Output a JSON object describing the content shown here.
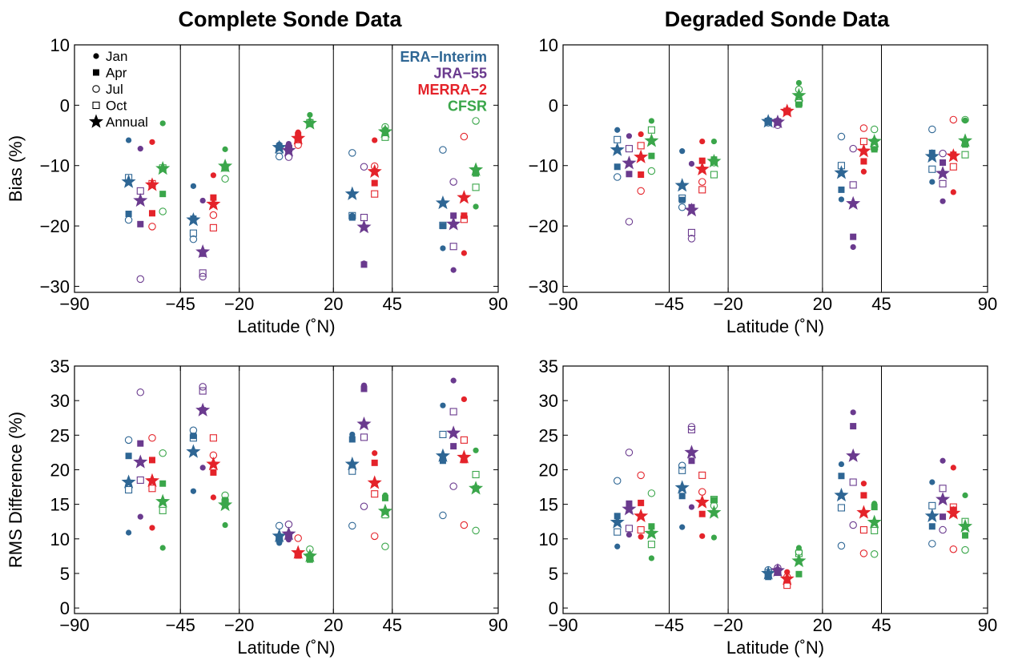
{
  "column_titles": [
    "Complete Sonde Data",
    "Degraded Sonde Data"
  ],
  "colors": {
    "ERA-Interim": "#2e6694",
    "JRA-55": "#6a3a8e",
    "MERRA-2": "#e4232a",
    "CFSR": "#3aa64a"
  },
  "legend": {
    "markers": [
      {
        "label": "Jan",
        "symbol": "filled-circle"
      },
      {
        "label": "Apr",
        "symbol": "filled-square"
      },
      {
        "label": "Jul",
        "symbol": "open-circle"
      },
      {
        "label": "Oct",
        "symbol": "open-square"
      },
      {
        "label": "Annual",
        "symbol": "star"
      }
    ],
    "reanalyses": [
      "ERA−Interim",
      "JRA−55",
      "MERRA−2",
      "CFSR"
    ]
  },
  "chart_data": [
    {
      "type": "scatter",
      "title": "Complete Sonde Data",
      "xlabel": "Latitude (˚N)",
      "ylabel": "Bias (%)",
      "xlim": [
        -90,
        90
      ],
      "ylim": [
        -31,
        10
      ],
      "x_ticks": [
        "−90",
        "−45",
        "−20",
        "20",
        "45",
        "90"
      ],
      "x_tick_values": [
        -90,
        -45,
        -20,
        20,
        45,
        90
      ],
      "y_ticks": [
        "−30",
        "−20",
        "−10",
        "0",
        "10"
      ],
      "y_tick_values": [
        -30,
        -20,
        -10,
        0,
        10
      ],
      "band_boundaries": [
        -45,
        -20,
        20,
        45
      ],
      "series": [
        {
          "name": "ERA−Interim",
          "x": [
            -67,
            -39.5,
            -3,
            28,
            66.5
          ],
          "Jan": [
            -5.8,
            -13.4,
            -6.5,
            -18.3,
            -23.7
          ],
          "Apr": [
            -18.0,
            -18.8,
            -6.8,
            -18.6,
            -20.0
          ],
          "Jul": [
            -19.0,
            -22.2,
            -8.5,
            -7.9,
            -7.4
          ],
          "Oct": [
            -12.0,
            -21.2,
            -7.4,
            -18.3,
            -19.9
          ],
          "Annual": [
            -12.7,
            -19.0,
            -7.0,
            -14.7,
            -16.2
          ]
        },
        {
          "name": "JRA−55",
          "x": [
            -62,
            -35.5,
            1,
            33,
            71
          ],
          "Jan": [
            -7.2,
            -15.8,
            -6.4,
            -26.2,
            -27.3
          ],
          "Apr": [
            -19.7,
            -24.6,
            -7.0,
            -26.4,
            -18.3
          ],
          "Jul": [
            -28.8,
            -28.4,
            -8.6,
            -10.2,
            -12.7
          ],
          "Oct": [
            -14.2,
            -27.8,
            -7.2,
            -18.6,
            -23.4
          ],
          "Annual": [
            -15.8,
            -24.3,
            -7.5,
            -20.2,
            -19.7
          ]
        },
        {
          "name": "MERRA−2",
          "x": [
            -57,
            -31,
            5,
            37.5,
            75.5
          ],
          "Jan": [
            -6.1,
            -11.6,
            -4.5,
            -5.8,
            -24.5
          ],
          "Apr": [
            -17.9,
            -15.3,
            -5.0,
            -12.9,
            -18.3
          ],
          "Jul": [
            -20.1,
            -18.2,
            -6.6,
            -10.1,
            -5.2
          ],
          "Oct": [
            -13.0,
            -20.3,
            -5.7,
            -14.7,
            -18.9
          ],
          "Annual": [
            -13.2,
            -16.4,
            -5.5,
            -11.0,
            -15.3
          ]
        },
        {
          "name": "CFSR",
          "x": [
            -52.5,
            -26,
            10,
            42,
            80.5
          ],
          "Jan": [
            -3.0,
            -7.3,
            -1.6,
            -4.0,
            -16.8
          ],
          "Apr": [
            -14.7,
            -10.3,
            -3.1,
            -4.6,
            -11.3
          ],
          "Jul": [
            -17.6,
            -12.2,
            -2.8,
            -3.6,
            -2.6
          ],
          "Oct": [
            -10.4,
            -10.4,
            -2.9,
            -5.3,
            -13.6
          ],
          "Annual": [
            -10.5,
            -10.1,
            -3.0,
            -4.4,
            -10.7
          ]
        }
      ]
    },
    {
      "type": "scatter",
      "title": "Degraded Sonde Data",
      "xlabel": "Latitude (˚N)",
      "ylabel": "",
      "xlim": [
        -90,
        90
      ],
      "ylim": [
        -31,
        10
      ],
      "x_ticks": [
        "−90",
        "−45",
        "−20",
        "20",
        "45",
        "90"
      ],
      "x_tick_values": [
        -90,
        -45,
        -20,
        20,
        45,
        90
      ],
      "y_ticks": [
        "−30",
        "−20",
        "−10",
        "0",
        "10"
      ],
      "y_tick_values": [
        -30,
        -20,
        -10,
        0,
        10
      ],
      "band_boundaries": [
        -45,
        -20,
        20,
        45
      ],
      "series": [
        {
          "name": "ERA−Interim",
          "x": [
            -67,
            -39.5,
            -3,
            28,
            66.5
          ],
          "Jan": [
            -4.1,
            -7.6,
            -2.4,
            -15.6,
            -12.7
          ],
          "Apr": [
            -10.2,
            -15.7,
            -2.6,
            -14.0,
            -7.9
          ],
          "Jul": [
            -11.9,
            -16.9,
            -2.9,
            -5.2,
            -4.0
          ],
          "Oct": [
            -5.7,
            -15.4,
            -2.7,
            -10.0,
            -10.6
          ],
          "Annual": [
            -7.4,
            -13.3,
            -2.7,
            -11.2,
            -8.5
          ]
        },
        {
          "name": "JRA−55",
          "x": [
            -62,
            -35.5,
            1,
            33,
            71
          ],
          "Jan": [
            -5.1,
            -9.7,
            -2.5,
            -23.5,
            -15.9
          ],
          "Apr": [
            -11.4,
            -16.9,
            -2.7,
            -21.8,
            -9.5
          ],
          "Jul": [
            -19.3,
            -22.1,
            -3.3,
            -7.2,
            -8.0
          ],
          "Oct": [
            -7.2,
            -21.1,
            -2.8,
            -13.2,
            -13.0
          ],
          "Annual": [
            -9.6,
            -17.4,
            -2.8,
            -16.3,
            -11.3
          ]
        },
        {
          "name": "MERRA−2",
          "x": [
            -57,
            -31,
            5,
            37.5,
            75.5
          ],
          "Jan": [
            -4.8,
            -6.0,
            -0.9,
            -11.0,
            -14.4
          ],
          "Apr": [
            -11.5,
            -9.2,
            -1.1,
            -9.3,
            -8.2
          ],
          "Jul": [
            -14.2,
            -12.7,
            -1.0,
            -3.8,
            -2.4
          ],
          "Oct": [
            -6.7,
            -14.0,
            -1.0,
            -6.0,
            -10.2
          ],
          "Annual": [
            -8.6,
            -10.6,
            -1.0,
            -7.6,
            -8.4
          ]
        },
        {
          "name": "CFSR",
          "x": [
            -52.5,
            -26,
            10,
            42,
            80.5
          ],
          "Jan": [
            -2.6,
            -6.0,
            3.7,
            -5.8,
            -2.5
          ],
          "Apr": [
            -8.4,
            -9.0,
            0.1,
            -7.3,
            -6.5
          ],
          "Jul": [
            -10.9,
            -9.5,
            2.6,
            -4.0,
            -2.4
          ],
          "Oct": [
            -4.1,
            -11.5,
            0.4,
            -6.9,
            -8.2
          ],
          "Annual": [
            -5.9,
            -9.3,
            1.6,
            -6.0,
            -5.9
          ]
        }
      ]
    },
    {
      "type": "scatter",
      "title": "",
      "xlabel": "Latitude (˚N)",
      "ylabel": "RMS Difference (%)",
      "xlim": [
        -90,
        90
      ],
      "ylim": [
        -0.8,
        35
      ],
      "x_ticks": [
        "−90",
        "−45",
        "−20",
        "20",
        "45",
        "90"
      ],
      "x_tick_values": [
        -90,
        -45,
        -20,
        20,
        45,
        90
      ],
      "y_ticks": [
        "0",
        "5",
        "10",
        "15",
        "20",
        "25",
        "30",
        "35"
      ],
      "y_tick_values": [
        0,
        5,
        10,
        15,
        20,
        25,
        30,
        35
      ],
      "band_boundaries": [
        -45,
        -20,
        20,
        45
      ],
      "series": [
        {
          "name": "ERA−Interim",
          "x": [
            -67,
            -39.5,
            -3,
            28,
            66.5
          ],
          "Jan": [
            10.9,
            16.9,
            9.4,
            25.1,
            29.3
          ],
          "Apr": [
            22.0,
            24.9,
            9.9,
            24.4,
            21.3
          ],
          "Jul": [
            24.3,
            25.7,
            11.9,
            11.9,
            13.4
          ],
          "Oct": [
            17.1,
            24.6,
            10.2,
            19.8,
            25.1
          ],
          "Annual": [
            18.2,
            22.6,
            10.4,
            20.8,
            22.0
          ]
        },
        {
          "name": "JRA−55",
          "x": [
            -62,
            -35.5,
            1,
            33,
            71
          ],
          "Jan": [
            13.2,
            20.3,
            9.9,
            32.2,
            32.9
          ],
          "Apr": [
            23.8,
            28.6,
            10.3,
            31.7,
            23.4
          ],
          "Jul": [
            31.2,
            32.0,
            12.1,
            14.7,
            17.6
          ],
          "Oct": [
            18.5,
            31.4,
            10.5,
            24.7,
            28.4
          ],
          "Annual": [
            21.1,
            28.6,
            10.7,
            26.6,
            25.3
          ]
        },
        {
          "name": "MERRA−2",
          "x": [
            -57,
            -31,
            5,
            37.5,
            75.5
          ],
          "Jan": [
            11.6,
            16.0,
            7.8,
            22.4,
            30.2
          ],
          "Apr": [
            21.4,
            19.6,
            7.6,
            21.0,
            21.4
          ],
          "Jul": [
            24.6,
            22.1,
            10.1,
            10.4,
            12.0
          ],
          "Oct": [
            17.3,
            24.6,
            7.8,
            16.5,
            24.3
          ],
          "Annual": [
            18.4,
            20.8,
            8.0,
            18.1,
            21.8
          ]
        },
        {
          "name": "CFSR",
          "x": [
            -52.5,
            -26,
            10,
            42,
            80.5
          ],
          "Jan": [
            8.7,
            12.0,
            7.7,
            16.3,
            22.8
          ],
          "Apr": [
            18.0,
            15.6,
            7.0,
            15.9,
            17.3
          ],
          "Jul": [
            22.4,
            16.3,
            8.5,
            8.9,
            11.2
          ],
          "Oct": [
            14.1,
            15.3,
            7.4,
            13.5,
            19.3
          ],
          "Annual": [
            15.4,
            14.9,
            7.5,
            14.0,
            17.3
          ]
        }
      ]
    },
    {
      "type": "scatter",
      "title": "",
      "xlabel": "Latitude (˚N)",
      "ylabel": "",
      "xlim": [
        -90,
        90
      ],
      "ylim": [
        -0.8,
        35
      ],
      "x_ticks": [
        "−90",
        "−45",
        "−20",
        "20",
        "45",
        "90"
      ],
      "x_tick_values": [
        -90,
        -45,
        -20,
        20,
        45,
        90
      ],
      "y_ticks": [
        "0",
        "5",
        "10",
        "15",
        "20",
        "25",
        "30",
        "35"
      ],
      "y_tick_values": [
        0,
        5,
        10,
        15,
        20,
        25,
        30,
        35
      ],
      "band_boundaries": [
        -45,
        -20,
        20,
        45
      ],
      "series": [
        {
          "name": "ERA−Interim",
          "x": [
            -67,
            -39.5,
            -3,
            28,
            66.5
          ],
          "Jan": [
            8.9,
            11.7,
            4.6,
            20.8,
            18.2
          ],
          "Apr": [
            13.3,
            16.2,
            4.5,
            19.1,
            11.8
          ],
          "Jul": [
            18.4,
            20.6,
            5.5,
            9.0,
            9.3
          ],
          "Oct": [
            11.0,
            19.9,
            5.1,
            14.5,
            14.8
          ],
          "Annual": [
            12.4,
            17.4,
            5.0,
            16.3,
            13.3
          ]
        },
        {
          "name": "JRA−55",
          "x": [
            -62,
            -35.5,
            1,
            33,
            71
          ],
          "Jan": [
            10.6,
            14.6,
            5.6,
            28.3,
            21.3
          ],
          "Apr": [
            15.1,
            21.3,
            5.1,
            26.3,
            13.2
          ],
          "Jul": [
            22.5,
            26.2,
            5.8,
            12.0,
            11.3
          ],
          "Oct": [
            11.5,
            25.8,
            5.3,
            18.2,
            17.3
          ],
          "Annual": [
            14.3,
            22.5,
            5.4,
            22.0,
            15.7
          ]
        },
        {
          "name": "MERRA−2",
          "x": [
            -57,
            -31,
            5,
            37.5,
            75.5
          ],
          "Jan": [
            10.3,
            10.4,
            5.2,
            18.0,
            20.3
          ],
          "Apr": [
            15.2,
            13.6,
            4.0,
            16.3,
            14.2
          ],
          "Jul": [
            19.2,
            16.8,
            4.5,
            7.9,
            8.5
          ],
          "Oct": [
            11.3,
            19.2,
            3.3,
            11.3,
            14.6
          ],
          "Annual": [
            13.3,
            15.3,
            4.2,
            13.8,
            13.7
          ]
        },
        {
          "name": "CFSR",
          "x": [
            -52.5,
            -26,
            10,
            42,
            80.5
          ],
          "Jan": [
            7.2,
            10.2,
            8.7,
            15.1,
            16.3
          ],
          "Apr": [
            11.8,
            15.6,
            4.9,
            14.6,
            10.5
          ],
          "Jul": [
            16.6,
            14.8,
            8.1,
            7.8,
            8.4
          ],
          "Oct": [
            9.2,
            15.7,
            7.9,
            11.2,
            12.5
          ],
          "Annual": [
            10.8,
            13.8,
            6.8,
            12.4,
            11.8
          ]
        }
      ]
    }
  ]
}
